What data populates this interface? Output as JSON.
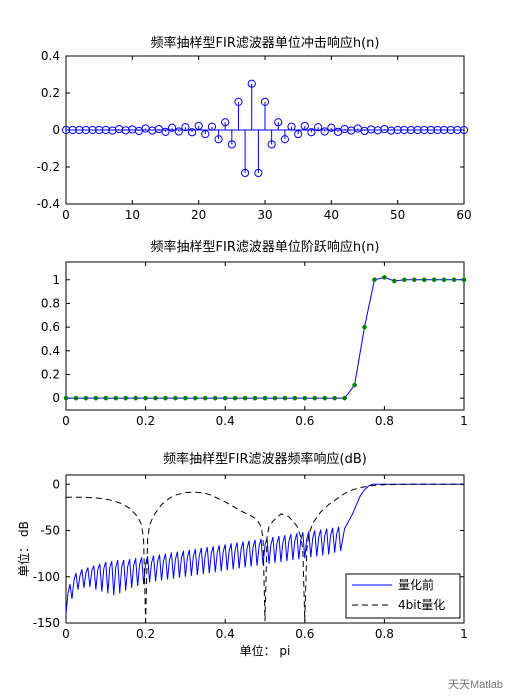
{
  "watermark": "天天Matlab",
  "chart_data": [
    {
      "type": "stem",
      "title": "频率抽样型FIR滤波器单位冲击响应h(n)",
      "xlim": [
        0,
        60
      ],
      "ylim": [
        -0.4,
        0.4
      ],
      "xticks": [
        0,
        10,
        20,
        30,
        40,
        50,
        60
      ],
      "yticks": [
        -0.4,
        -0.2,
        0,
        0.2,
        0.4
      ],
      "ytick_labels": [
        "-0.4",
        "-0.2",
        "0",
        "0.2",
        "0.4"
      ],
      "color": "#0000ff",
      "x": [
        0,
        1,
        2,
        3,
        4,
        5,
        6,
        7,
        8,
        9,
        10,
        11,
        12,
        13,
        14,
        15,
        16,
        17,
        18,
        19,
        20,
        21,
        22,
        23,
        24,
        25,
        26,
        27,
        28,
        29,
        30,
        31,
        32,
        33,
        34,
        35,
        36,
        37,
        38,
        39,
        40,
        41,
        42,
        43,
        44,
        45,
        46,
        47,
        48,
        49,
        50,
        51,
        52,
        53,
        54,
        55,
        56,
        57,
        58,
        59,
        60
      ],
      "y": [
        0,
        0,
        0,
        0,
        0,
        0,
        0,
        -0.003,
        0.005,
        -0.002,
        0.003,
        -0.005,
        0.008,
        -0.003,
        0.005,
        -0.01,
        0.012,
        -0.008,
        0.015,
        -0.012,
        0.022,
        -0.022,
        0.018,
        -0.05,
        0.042,
        -0.078,
        0.152,
        -0.232,
        0.25,
        -0.232,
        0.152,
        -0.078,
        0.042,
        -0.05,
        0.018,
        -0.022,
        0.022,
        -0.012,
        0.015,
        -0.008,
        0.012,
        -0.01,
        0.005,
        -0.003,
        0.008,
        -0.005,
        0.003,
        -0.002,
        0.005,
        -0.003,
        0,
        0,
        0,
        0,
        0,
        0,
        0,
        0,
        0,
        0,
        0
      ]
    },
    {
      "type": "line",
      "title": "频率抽样型FIR滤波器单位阶跃响应h(n)",
      "xlim": [
        0,
        1
      ],
      "ylim": [
        -0.1,
        1.15
      ],
      "xticks": [
        0,
        0.2,
        0.4,
        0.6,
        0.8,
        1
      ],
      "xtick_labels": [
        "0",
        "0.2",
        "0.4",
        "0.6",
        "0.8",
        "1"
      ],
      "yticks": [
        0,
        0.2,
        0.4,
        0.6,
        0.8,
        1
      ],
      "ytick_labels": [
        "0",
        "0.2",
        "0.4",
        "0.6",
        "0.8",
        "1"
      ],
      "line_color": "#0000ff",
      "marker_color": "#008000",
      "x": [
        0.0,
        0.025,
        0.05,
        0.075,
        0.1,
        0.125,
        0.15,
        0.175,
        0.2,
        0.225,
        0.25,
        0.275,
        0.3,
        0.325,
        0.35,
        0.375,
        0.4,
        0.425,
        0.45,
        0.475,
        0.5,
        0.525,
        0.55,
        0.575,
        0.6,
        0.625,
        0.65,
        0.675,
        0.7,
        0.725,
        0.75,
        0.775,
        0.8,
        0.825,
        0.85,
        0.875,
        0.9,
        0.925,
        0.95,
        0.975,
        1.0
      ],
      "y": [
        0,
        0,
        0,
        0,
        0,
        0,
        0,
        0,
        0,
        0,
        0,
        0,
        0,
        0,
        0,
        0,
        0,
        0,
        0,
        0,
        0,
        0,
        0,
        0,
        0,
        0,
        0,
        0,
        0,
        0.11,
        0.6,
        1.0,
        1.02,
        0.99,
        1.0,
        1.0,
        1.0,
        1.0,
        1.0,
        1.0,
        1.0
      ]
    },
    {
      "type": "line",
      "title": "频率抽样型FIR滤波器频率响应(dB)",
      "xlabel": "单位： pi",
      "ylabel": "单位： dB",
      "xlim": [
        0,
        1
      ],
      "ylim": [
        -150,
        10
      ],
      "xticks": [
        0,
        0.2,
        0.4,
        0.6,
        0.8,
        1
      ],
      "xtick_labels": [
        "0",
        "0.2",
        "0.4",
        "0.6",
        "0.8",
        "1"
      ],
      "yticks": [
        -150,
        -100,
        -50,
        0
      ],
      "ytick_labels": [
        "-150",
        "-100",
        "-50",
        "0"
      ],
      "legend_position": "bottom-right",
      "series": [
        {
          "name": "量化前",
          "style": "solid",
          "color": "#0000ff",
          "x": [
            0.0,
            0.005,
            0.01,
            0.015,
            0.02,
            0.025,
            0.03,
            0.035,
            0.04,
            0.045,
            0.05,
            0.055,
            0.06,
            0.065,
            0.07,
            0.075,
            0.08,
            0.085,
            0.09,
            0.095,
            0.1,
            0.105,
            0.11,
            0.115,
            0.12,
            0.125,
            0.13,
            0.135,
            0.14,
            0.145,
            0.15,
            0.155,
            0.16,
            0.165,
            0.17,
            0.175,
            0.18,
            0.185,
            0.19,
            0.195,
            0.2,
            0.205,
            0.21,
            0.215,
            0.22,
            0.225,
            0.23,
            0.235,
            0.24,
            0.245,
            0.25,
            0.255,
            0.26,
            0.265,
            0.27,
            0.275,
            0.28,
            0.285,
            0.29,
            0.295,
            0.3,
            0.305,
            0.31,
            0.315,
            0.32,
            0.325,
            0.33,
            0.335,
            0.34,
            0.345,
            0.35,
            0.355,
            0.36,
            0.365,
            0.37,
            0.375,
            0.38,
            0.385,
            0.39,
            0.395,
            0.4,
            0.405,
            0.41,
            0.415,
            0.42,
            0.425,
            0.43,
            0.435,
            0.44,
            0.445,
            0.45,
            0.455,
            0.46,
            0.465,
            0.47,
            0.475,
            0.48,
            0.485,
            0.49,
            0.495,
            0.5,
            0.505,
            0.51,
            0.515,
            0.52,
            0.525,
            0.53,
            0.535,
            0.54,
            0.545,
            0.55,
            0.555,
            0.56,
            0.565,
            0.57,
            0.575,
            0.58,
            0.585,
            0.59,
            0.595,
            0.6,
            0.605,
            0.61,
            0.615,
            0.62,
            0.625,
            0.63,
            0.635,
            0.64,
            0.645,
            0.65,
            0.655,
            0.66,
            0.665,
            0.67,
            0.675,
            0.68,
            0.685,
            0.69,
            0.7,
            0.71,
            0.72,
            0.73,
            0.74,
            0.75,
            0.76,
            0.77,
            0.78,
            0.79,
            0.8,
            0.85,
            0.9,
            0.95,
            1.0
          ],
          "y": [
            -140,
            -118,
            -108,
            -124,
            -104,
            -96,
            -114,
            -99,
            -92,
            -112,
            -96,
            -90,
            -111,
            -93,
            -88,
            -114,
            -92,
            -86,
            -116,
            -91,
            -84,
            -118,
            -90,
            -83,
            -120,
            -90,
            -82,
            -118,
            -89,
            -82,
            -115,
            -89,
            -81,
            -112,
            -88,
            -80,
            -110,
            -87,
            -79,
            -108,
            -86,
            -78,
            -106,
            -85,
            -77,
            -105,
            -84,
            -76,
            -104,
            -83,
            -75,
            -103,
            -82,
            -74,
            -102,
            -81,
            -73,
            -101,
            -80,
            -72,
            -100,
            -79,
            -71,
            -99,
            -78,
            -70,
            -98,
            -77,
            -69,
            -97,
            -76,
            -68,
            -96,
            -75,
            -67,
            -95,
            -74,
            -66,
            -94,
            -73,
            -65,
            -93,
            -72,
            -64,
            -92,
            -71,
            -63,
            -91,
            -70,
            -62,
            -90,
            -69,
            -61,
            -89,
            -68,
            -60,
            -88,
            -67,
            -59,
            -87,
            -66,
            -58,
            -86,
            -65,
            -57,
            -85,
            -64,
            -56,
            -84,
            -63,
            -55,
            -83,
            -62,
            -54,
            -82,
            -61,
            -53,
            -81,
            -60,
            -52,
            -80,
            -59,
            -51,
            -79,
            -58,
            -50,
            -78,
            -57,
            -49,
            -77,
            -56,
            -48,
            -76,
            -55,
            -47,
            -74,
            -54,
            -46,
            -72,
            -48,
            -40,
            -32,
            -22,
            -12,
            -6,
            -2,
            0,
            0,
            0,
            0,
            0,
            0,
            0,
            0
          ]
        },
        {
          "name": "4bit量化",
          "style": "dashed",
          "color": "#000000",
          "x": [
            0.0,
            0.02,
            0.04,
            0.06,
            0.08,
            0.1,
            0.12,
            0.14,
            0.16,
            0.18,
            0.19,
            0.195,
            0.2,
            0.205,
            0.21,
            0.22,
            0.24,
            0.26,
            0.28,
            0.3,
            0.32,
            0.34,
            0.36,
            0.38,
            0.4,
            0.42,
            0.44,
            0.46,
            0.48,
            0.49,
            0.495,
            0.5,
            0.505,
            0.51,
            0.52,
            0.54,
            0.56,
            0.58,
            0.59,
            0.595,
            0.6,
            0.605,
            0.61,
            0.62,
            0.64,
            0.66,
            0.68,
            0.7,
            0.72,
            0.74,
            0.76,
            0.78,
            0.8,
            0.82,
            0.84,
            0.86,
            0.88,
            0.9,
            0.92,
            0.94,
            0.96,
            0.98,
            1.0
          ],
          "y": [
            -14,
            -14,
            -14,
            -14.5,
            -15,
            -16,
            -18,
            -21,
            -26,
            -35,
            -44,
            -60,
            -148,
            -60,
            -44,
            -34,
            -22,
            -15,
            -11,
            -9,
            -8.5,
            -9,
            -11,
            -15,
            -19,
            -24,
            -29,
            -33,
            -38,
            -46,
            -58,
            -148,
            -58,
            -46,
            -40,
            -32,
            -35,
            -45,
            -57,
            -70,
            -148,
            -70,
            -55,
            -42,
            -30,
            -22,
            -16,
            -10,
            -6,
            -3.5,
            -2,
            -1,
            -0.5,
            -0.3,
            -0.1,
            0,
            0,
            0,
            0,
            0,
            0,
            0,
            0
          ]
        }
      ]
    }
  ]
}
